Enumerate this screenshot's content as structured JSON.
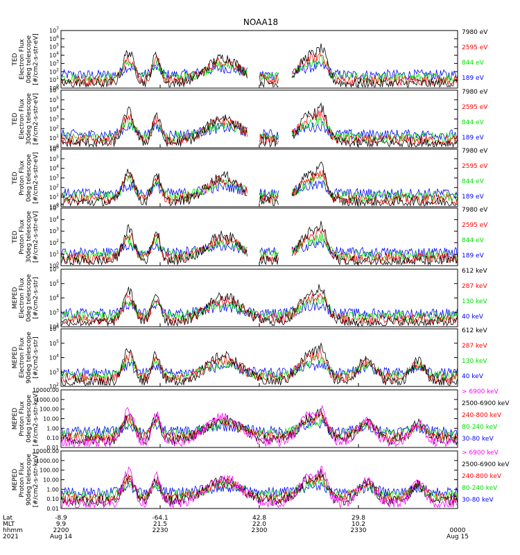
{
  "chart_data": {
    "title": "NOAA18",
    "type": "line",
    "x_axis": {
      "rows": [
        {
          "label": "Lat",
          "values": [
            "-8.9",
            "-64.1",
            "42.8",
            "29.8",
            ""
          ]
        },
        {
          "label": "MLT",
          "values": [
            "9.9",
            "21.5",
            "22.0",
            "10.2",
            ""
          ]
        },
        {
          "label": "hhmm",
          "values": [
            "2200",
            "2230",
            "2300",
            "2330",
            "0000"
          ]
        },
        {
          "label": "2021",
          "values": [
            "Aug 14",
            "",
            "",
            "",
            "Aug 15"
          ]
        }
      ]
    },
    "panels": [
      {
        "ylabel": [
          "TED",
          "Electron Flux",
          "0deg telescope",
          "[#/cm2-s-str-eV]"
        ],
        "y_scale": "log",
        "yticks": [
          "10^7",
          "10^6",
          "10^5",
          "10^4",
          "10^3",
          "10^2",
          "10^1",
          "10^0"
        ],
        "legend": [
          {
            "label": "7980 eV",
            "color": "#000000"
          },
          {
            "label": "2595 eV",
            "color": "#ff0000"
          },
          {
            "label": "844 eV",
            "color": "#00dd00"
          },
          {
            "label": "189 eV",
            "color": "#0000ff"
          }
        ]
      },
      {
        "ylabel": [
          "TED",
          "Electron Flux",
          "30deg telescope",
          "[#/cm2-s-str-eV]"
        ],
        "y_scale": "log",
        "yticks": [
          "10^6",
          "10^5",
          "10^4",
          "10^3",
          "10^2",
          "10^1",
          "10^0"
        ],
        "legend": [
          {
            "label": "7980 eV",
            "color": "#000000"
          },
          {
            "label": "2595 eV",
            "color": "#ff0000"
          },
          {
            "label": "844 eV",
            "color": "#00dd00"
          },
          {
            "label": "189 eV",
            "color": "#0000ff"
          }
        ]
      },
      {
        "ylabel": [
          "TED",
          "Proton Flux",
          "0deg telescope",
          "[#/cm2-s-str-eV]"
        ],
        "y_scale": "log",
        "yticks": [
          "10^6",
          "10^5",
          "10^4",
          "10^3",
          "10^2",
          "10^1",
          "10^0"
        ],
        "legend": [
          {
            "label": "7980 eV",
            "color": "#000000"
          },
          {
            "label": "2595 eV",
            "color": "#ff0000"
          },
          {
            "label": "844 eV",
            "color": "#00dd00"
          },
          {
            "label": "189 eV",
            "color": "#0000ff"
          }
        ]
      },
      {
        "ylabel": [
          "TED",
          "Proton Flux",
          "30deg telescope",
          "[#/cm2-s-str-eV]"
        ],
        "y_scale": "log",
        "yticks": [
          "10^5",
          "10^4",
          "10^3",
          "10^2",
          "10^1",
          "10^0"
        ],
        "legend": [
          {
            "label": "7980 eV",
            "color": "#000000"
          },
          {
            "label": "2595 eV",
            "color": "#ff0000"
          },
          {
            "label": "844 eV",
            "color": "#00dd00"
          },
          {
            "label": "189 eV",
            "color": "#0000ff"
          }
        ]
      },
      {
        "ylabel": [
          "MEPED",
          "Electron Flux",
          "0deg telescope",
          "[#/cm2-s-str]"
        ],
        "y_scale": "log",
        "yticks": [
          "10^6",
          "10^5",
          "10^4",
          "10^3",
          "10^2"
        ],
        "legend": [
          {
            "label": "612 keV",
            "color": "#000000"
          },
          {
            "label": "287 keV",
            "color": "#ff0000"
          },
          {
            "label": "130 keV",
            "color": "#00dd00"
          },
          {
            "label": "40 keV",
            "color": "#0000ff"
          }
        ]
      },
      {
        "ylabel": [
          "MEPED",
          "Electron Flux",
          "90deg telescope",
          "[#/cm2-s-str]"
        ],
        "y_scale": "log",
        "yticks": [
          "10^6",
          "10^5",
          "10^4",
          "10^3",
          "10^2"
        ],
        "legend": [
          {
            "label": "612 keV",
            "color": "#000000"
          },
          {
            "label": "287 keV",
            "color": "#ff0000"
          },
          {
            "label": "130 keV",
            "color": "#00dd00"
          },
          {
            "label": "40 keV",
            "color": "#0000ff"
          }
        ]
      },
      {
        "ylabel": [
          "MEPED",
          "Proton Flux",
          "0deg telescope",
          "[#/cm2-s-str-keV]"
        ],
        "y_scale": "log",
        "yticks": [
          "10000.00",
          "1000.00",
          "100.00",
          "10.00",
          "1.00",
          "0.10",
          "0.01"
        ],
        "legend": [
          {
            "label": "> 6900 keV",
            "color": "#ff00ff"
          },
          {
            "label": "2500-6900 keV",
            "color": "#000000"
          },
          {
            "label": "240-800 keV",
            "color": "#ff0000"
          },
          {
            "label": "80-240 keV",
            "color": "#00dd00"
          },
          {
            "label": "30-80 keV",
            "color": "#0000ff"
          }
        ]
      },
      {
        "ylabel": [
          "MEPED",
          "Proton Flux",
          "90deg telescope",
          "[#/cm2-s-str-keV]"
        ],
        "y_scale": "log",
        "yticks": [
          "10000.00",
          "1000.00",
          "100.00",
          "10.00",
          "1.00",
          "0.10",
          "0.01"
        ],
        "legend": [
          {
            "label": "> 6900 keV",
            "color": "#ff00ff"
          },
          {
            "label": "2500-6900 keV",
            "color": "#000000"
          },
          {
            "label": "240-800 keV",
            "color": "#ff0000"
          },
          {
            "label": "80-240 keV",
            "color": "#00dd00"
          },
          {
            "label": "30-80 keV",
            "color": "#0000ff"
          }
        ]
      }
    ]
  }
}
